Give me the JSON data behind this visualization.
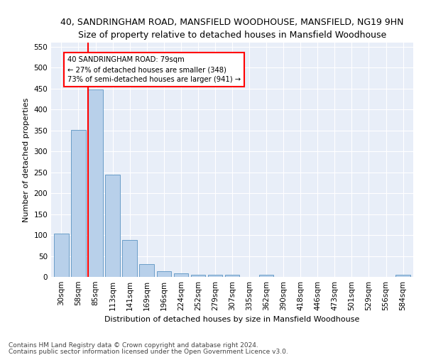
{
  "title1": "40, SANDRINGHAM ROAD, MANSFIELD WOODHOUSE, MANSFIELD, NG19 9HN",
  "title2": "Size of property relative to detached houses in Mansfield Woodhouse",
  "xlabel": "Distribution of detached houses by size in Mansfield Woodhouse",
  "ylabel": "Number of detached properties",
  "footnote1": "Contains HM Land Registry data © Crown copyright and database right 2024.",
  "footnote2": "Contains public sector information licensed under the Open Government Licence v3.0.",
  "bin_labels": [
    "30sqm",
    "58sqm",
    "85sqm",
    "113sqm",
    "141sqm",
    "169sqm",
    "196sqm",
    "224sqm",
    "252sqm",
    "279sqm",
    "307sqm",
    "335sqm",
    "362sqm",
    "390sqm",
    "418sqm",
    "446sqm",
    "473sqm",
    "501sqm",
    "529sqm",
    "556sqm",
    "584sqm"
  ],
  "bar_values": [
    103,
    352,
    448,
    245,
    88,
    30,
    14,
    9,
    5,
    5,
    5,
    0,
    5,
    0,
    0,
    0,
    0,
    0,
    0,
    0,
    5
  ],
  "bar_color": "#b8d0ea",
  "bar_edge_color": "#6a9ec8",
  "ylim": [
    0,
    560
  ],
  "yticks": [
    0,
    50,
    100,
    150,
    200,
    250,
    300,
    350,
    400,
    450,
    500,
    550
  ],
  "red_line_bin_index": 2,
  "annotation_title": "40 SANDRINGHAM ROAD: 79sqm",
  "annotation_line1": "← 27% of detached houses are smaller (348)",
  "annotation_line2": "73% of semi-detached houses are larger (941) →",
  "background_color": "#e8eef8",
  "grid_color": "#ffffff",
  "title1_fontsize": 9,
  "title2_fontsize": 9,
  "xlabel_fontsize": 8,
  "ylabel_fontsize": 8,
  "tick_fontsize": 7.5,
  "footnote_fontsize": 6.5
}
